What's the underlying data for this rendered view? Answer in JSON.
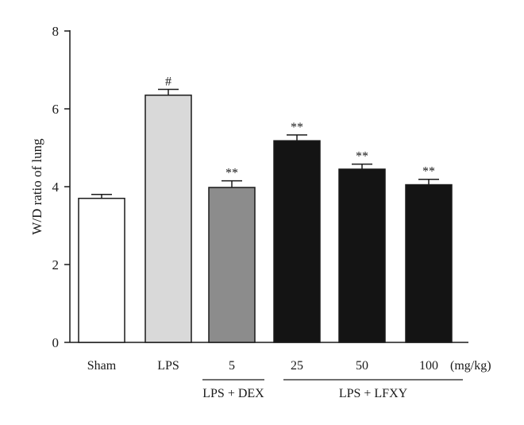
{
  "chart_data": {
    "type": "bar",
    "ylabel": "W/D ratio of lung",
    "ylim": [
      0,
      8
    ],
    "yticks": [
      0,
      2,
      4,
      6,
      8
    ],
    "grid": false,
    "unit_label": "(mg/kg)",
    "categories": [
      "Sham",
      "LPS",
      "5",
      "25",
      "50",
      "100"
    ],
    "values": [
      3.7,
      6.35,
      3.98,
      5.18,
      4.45,
      4.05
    ],
    "errors": [
      0.1,
      0.15,
      0.17,
      0.15,
      0.13,
      0.14
    ],
    "significance": [
      "",
      "#",
      "**",
      "**",
      "**",
      "**"
    ],
    "bar_colors": [
      "#ffffff",
      "#d9d9d9",
      "#8c8c8c",
      "#141414",
      "#141414",
      "#141414"
    ],
    "groups": [
      {
        "label": "LPS + DEX",
        "from": 2,
        "to": 2
      },
      {
        "label": "LPS + LFXY",
        "from": 3,
        "to": 5
      }
    ]
  }
}
